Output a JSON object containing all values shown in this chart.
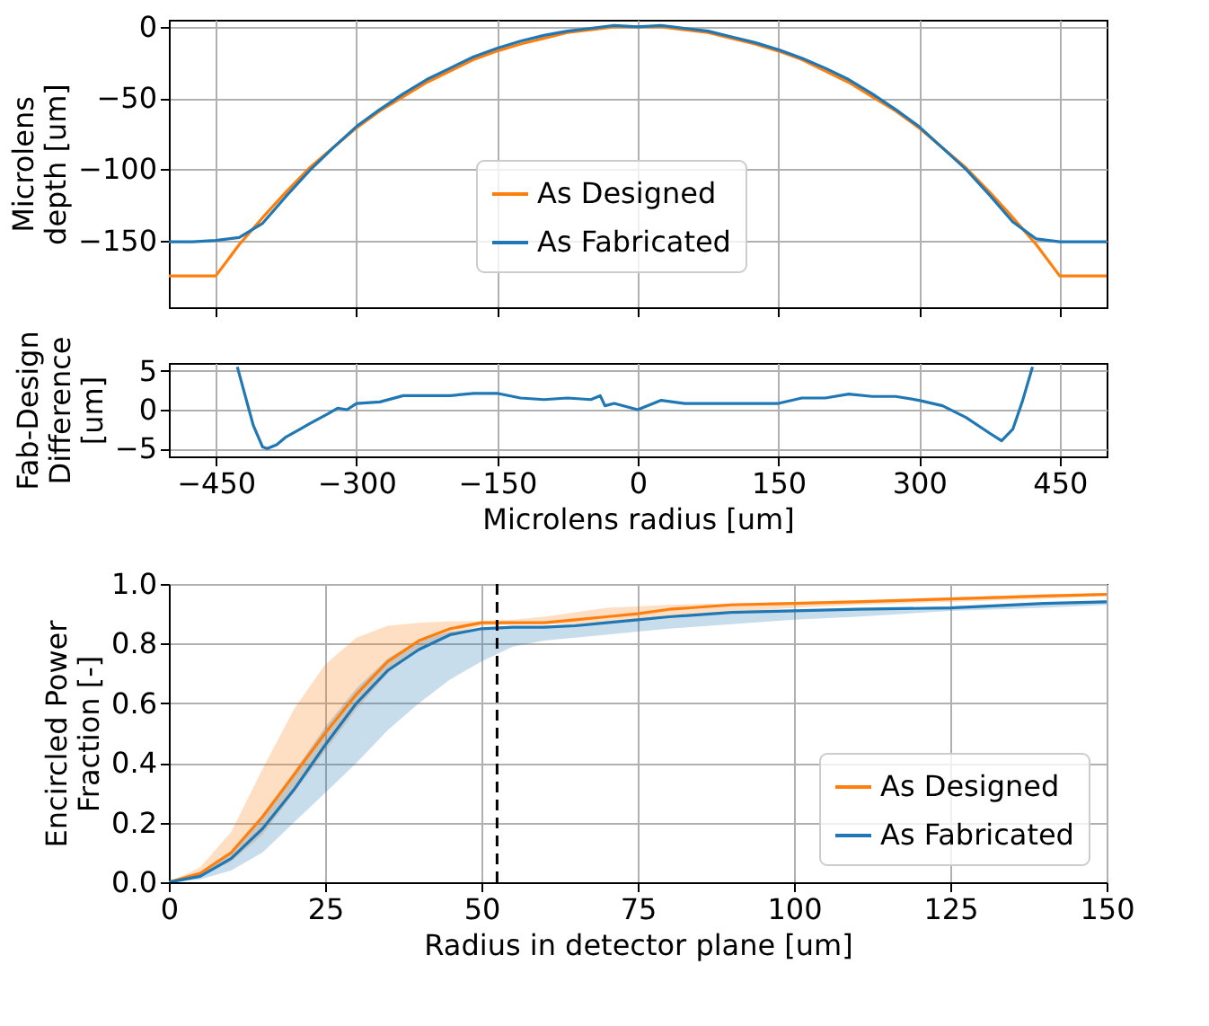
{
  "chart_data": [
    {
      "type": "line",
      "ylabel": "Microlens\ndepth [um]",
      "x": [
        -500,
        -475,
        -450,
        -425,
        -400,
        -375,
        -350,
        -325,
        -300,
        -275,
        -250,
        -225,
        -200,
        -175,
        -150,
        -125,
        -100,
        -75,
        -50,
        -25,
        0,
        25,
        50,
        75,
        100,
        125,
        150,
        175,
        200,
        225,
        250,
        275,
        300,
        325,
        350,
        375,
        400,
        425,
        450,
        475,
        500
      ],
      "series": [
        {
          "name": "As Designed",
          "color": "#ff7f0e",
          "values": [
            -175,
            -175,
            -175,
            -153,
            -134,
            -116,
            -99,
            -85,
            -71,
            -59,
            -49,
            -39,
            -31,
            -23,
            -17,
            -12,
            -8,
            -4,
            -2,
            0,
            0,
            0,
            -2,
            -4,
            -8,
            -12,
            -17,
            -23,
            -31,
            -39,
            -49,
            -59,
            -71,
            -85,
            -99,
            -116,
            -134,
            -153,
            -175,
            -175,
            -175
          ]
        },
        {
          "name": "As Fabricated",
          "color": "#1f77b4",
          "values": [
            -151,
            -151,
            -150,
            -148,
            -138,
            -119,
            -101,
            -85,
            -70,
            -58,
            -47,
            -37,
            -29,
            -21,
            -15,
            -10,
            -6,
            -3,
            -1,
            1,
            0,
            1,
            -1,
            -3,
            -7,
            -11,
            -16,
            -22,
            -29,
            -37,
            -47,
            -58,
            -70,
            -85,
            -100,
            -118,
            -137,
            -149,
            -151,
            -151,
            -151
          ]
        }
      ],
      "xlim": [
        -500,
        500
      ],
      "ylim": [
        -197,
        5
      ],
      "xticks": [
        -450,
        -300,
        -150,
        0,
        150,
        300,
        450
      ],
      "yticks": [
        -150,
        -100,
        -50,
        0
      ],
      "grid": true,
      "legend": "bottom",
      "tick_labels": "y"
    },
    {
      "type": "line",
      "ylabel": "Fab-Design\nDifference\n[um]",
      "xlabel": "Microlens radius [um]",
      "series": [
        {
          "color": "#1f77b4",
          "x": [
            -427,
            -410,
            -400,
            -395,
            -385,
            -375,
            -360,
            -350,
            -330,
            -320,
            -310,
            -300,
            -275,
            -250,
            -225,
            -200,
            -175,
            -150,
            -125,
            -100,
            -75,
            -50,
            -40,
            -35,
            -25,
            0,
            25,
            50,
            75,
            100,
            125,
            150,
            175,
            200,
            225,
            250,
            275,
            300,
            325,
            350,
            375,
            388,
            400,
            410,
            421
          ],
          "values": [
            5.5,
            -2,
            -4.8,
            -5,
            -4.5,
            -3.5,
            -2.5,
            -1.8,
            -0.5,
            0.2,
            0,
            0.8,
            1,
            1.8,
            1.8,
            1.8,
            2.1,
            2.1,
            1.5,
            1.3,
            1.5,
            1.3,
            1.8,
            0.5,
            0.8,
            0,
            1.2,
            0.8,
            0.8,
            0.8,
            0.8,
            0.8,
            1.5,
            1.5,
            2,
            1.7,
            1.7,
            1.2,
            0.5,
            -1,
            -3,
            -4,
            -2.5,
            1,
            5.5
          ]
        }
      ],
      "xlim": [
        -500,
        500
      ],
      "ylim": [
        -6,
        6
      ],
      "xticks": [
        -450,
        -300,
        -150,
        0,
        150,
        300,
        450
      ],
      "yticks": [
        -5,
        0,
        5
      ],
      "grid": true
    },
    {
      "type": "line",
      "ylabel": "Encircled Power\nFraction [-]",
      "xlabel": "Radius in detector plane [um]",
      "x": [
        0,
        5,
        10,
        15,
        20,
        25,
        30,
        35,
        40,
        45,
        50,
        55,
        60,
        65,
        70,
        75,
        80,
        90,
        100,
        110,
        125,
        140,
        150
      ],
      "series": [
        {
          "name": "As Designed",
          "color": "#ff7f0e",
          "values": [
            0,
            0.03,
            0.1,
            0.22,
            0.36,
            0.5,
            0.63,
            0.74,
            0.81,
            0.85,
            0.87,
            0.87,
            0.87,
            0.88,
            0.89,
            0.9,
            0.915,
            0.93,
            0.935,
            0.94,
            0.95,
            0.96,
            0.965
          ],
          "upper": [
            0,
            0.05,
            0.17,
            0.38,
            0.58,
            0.73,
            0.82,
            0.86,
            0.87,
            0.875,
            0.875,
            0.88,
            0.89,
            0.905,
            0.92,
            0.925,
            0.93,
            0.935,
            0.94,
            0.945,
            0.955,
            0.965,
            0.97
          ],
          "lower": [
            0,
            0.02,
            0.07,
            0.16,
            0.3,
            0.44,
            0.58,
            0.7,
            0.78,
            0.83,
            0.86,
            0.865,
            0.865,
            0.865,
            0.87,
            0.88,
            0.89,
            0.905,
            0.92,
            0.93,
            0.94,
            0.95,
            0.96
          ]
        },
        {
          "name": "As Fabricated",
          "color": "#1f77b4",
          "values": [
            0,
            0.02,
            0.08,
            0.18,
            0.31,
            0.46,
            0.6,
            0.71,
            0.78,
            0.83,
            0.85,
            0.855,
            0.855,
            0.86,
            0.87,
            0.88,
            0.89,
            0.905,
            0.91,
            0.915,
            0.92,
            0.935,
            0.94
          ],
          "upper": [
            0,
            0.03,
            0.1,
            0.22,
            0.37,
            0.52,
            0.65,
            0.75,
            0.81,
            0.84,
            0.85,
            0.855,
            0.86,
            0.865,
            0.87,
            0.88,
            0.89,
            0.9,
            0.91,
            0.915,
            0.925,
            0.935,
            0.945
          ],
          "lower": [
            0,
            0.01,
            0.04,
            0.1,
            0.2,
            0.3,
            0.4,
            0.51,
            0.6,
            0.68,
            0.74,
            0.79,
            0.81,
            0.82,
            0.83,
            0.84,
            0.85,
            0.865,
            0.88,
            0.89,
            0.91,
            0.92,
            0.93
          ]
        }
      ],
      "xlim": [
        0,
        150
      ],
      "ylim": [
        0,
        1
      ],
      "xticks": [
        0,
        25,
        50,
        75,
        100,
        125,
        150
      ],
      "yticks": [
        {
          "value": 0,
          "label": "0.0"
        },
        0.2,
        0.4,
        0.6,
        0.8,
        {
          "value": 1,
          "label": "1.0"
        }
      ],
      "grid": true,
      "legend": "bottom right",
      "ref_lines": [
        {
          "axis": "x",
          "value": 52.5,
          "color": "#000000",
          "line_style": "dashed"
        }
      ]
    }
  ]
}
